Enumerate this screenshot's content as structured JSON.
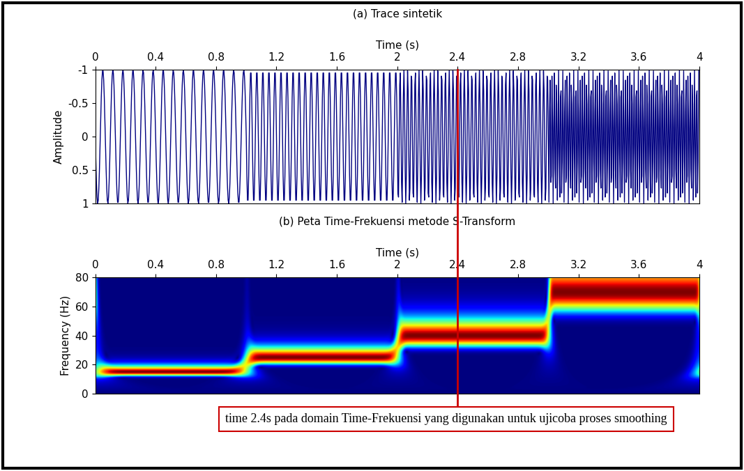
{
  "chart_data": [
    {
      "type": "line",
      "title": "(a) Trace sintetik",
      "xlabel": "Time (s)",
      "ylabel": "Amplitude",
      "color": "#000080",
      "segments": [
        {
          "start": 0,
          "end": 1,
          "frequency": 15,
          "amplitude": 1
        },
        {
          "start": 1,
          "end": 2,
          "frequency": 25,
          "amplitude": 1
        },
        {
          "start": 2,
          "end": 3,
          "frequency": 40,
          "amplitude": 1
        },
        {
          "start": 3,
          "end": 4,
          "frequency": 70,
          "amplitude": 1
        }
      ],
      "xlim": [
        0,
        4
      ],
      "xticks": [
        0,
        0.4,
        0.8,
        1.2,
        1.6,
        2,
        2.4,
        2.8,
        3.2,
        3.6,
        4
      ],
      "ylim": [
        1,
        -1
      ],
      "yticks": [
        -1,
        -0.5,
        0,
        0.5,
        1
      ]
    },
    {
      "type": "heatmap",
      "title": "(b) Peta Time-Frekuensi metode S-Transform",
      "xlabel": "Time (s)",
      "ylabel": "Frequency (Hz)",
      "xlim": [
        0,
        4
      ],
      "xticks": [
        0,
        0.4,
        0.8,
        1.2,
        1.6,
        2,
        2.4,
        2.8,
        3.2,
        3.6,
        4
      ],
      "ylim": [
        0,
        80
      ],
      "yticks": [
        0,
        20,
        40,
        60,
        80
      ],
      "annotations": [
        {
          "x": 2.4,
          "text": "time 2.4s pada domain Time-Frekuensi yang digunakan untuk ujicoba proses smoothing",
          "color": "#cc0000"
        }
      ]
    }
  ]
}
